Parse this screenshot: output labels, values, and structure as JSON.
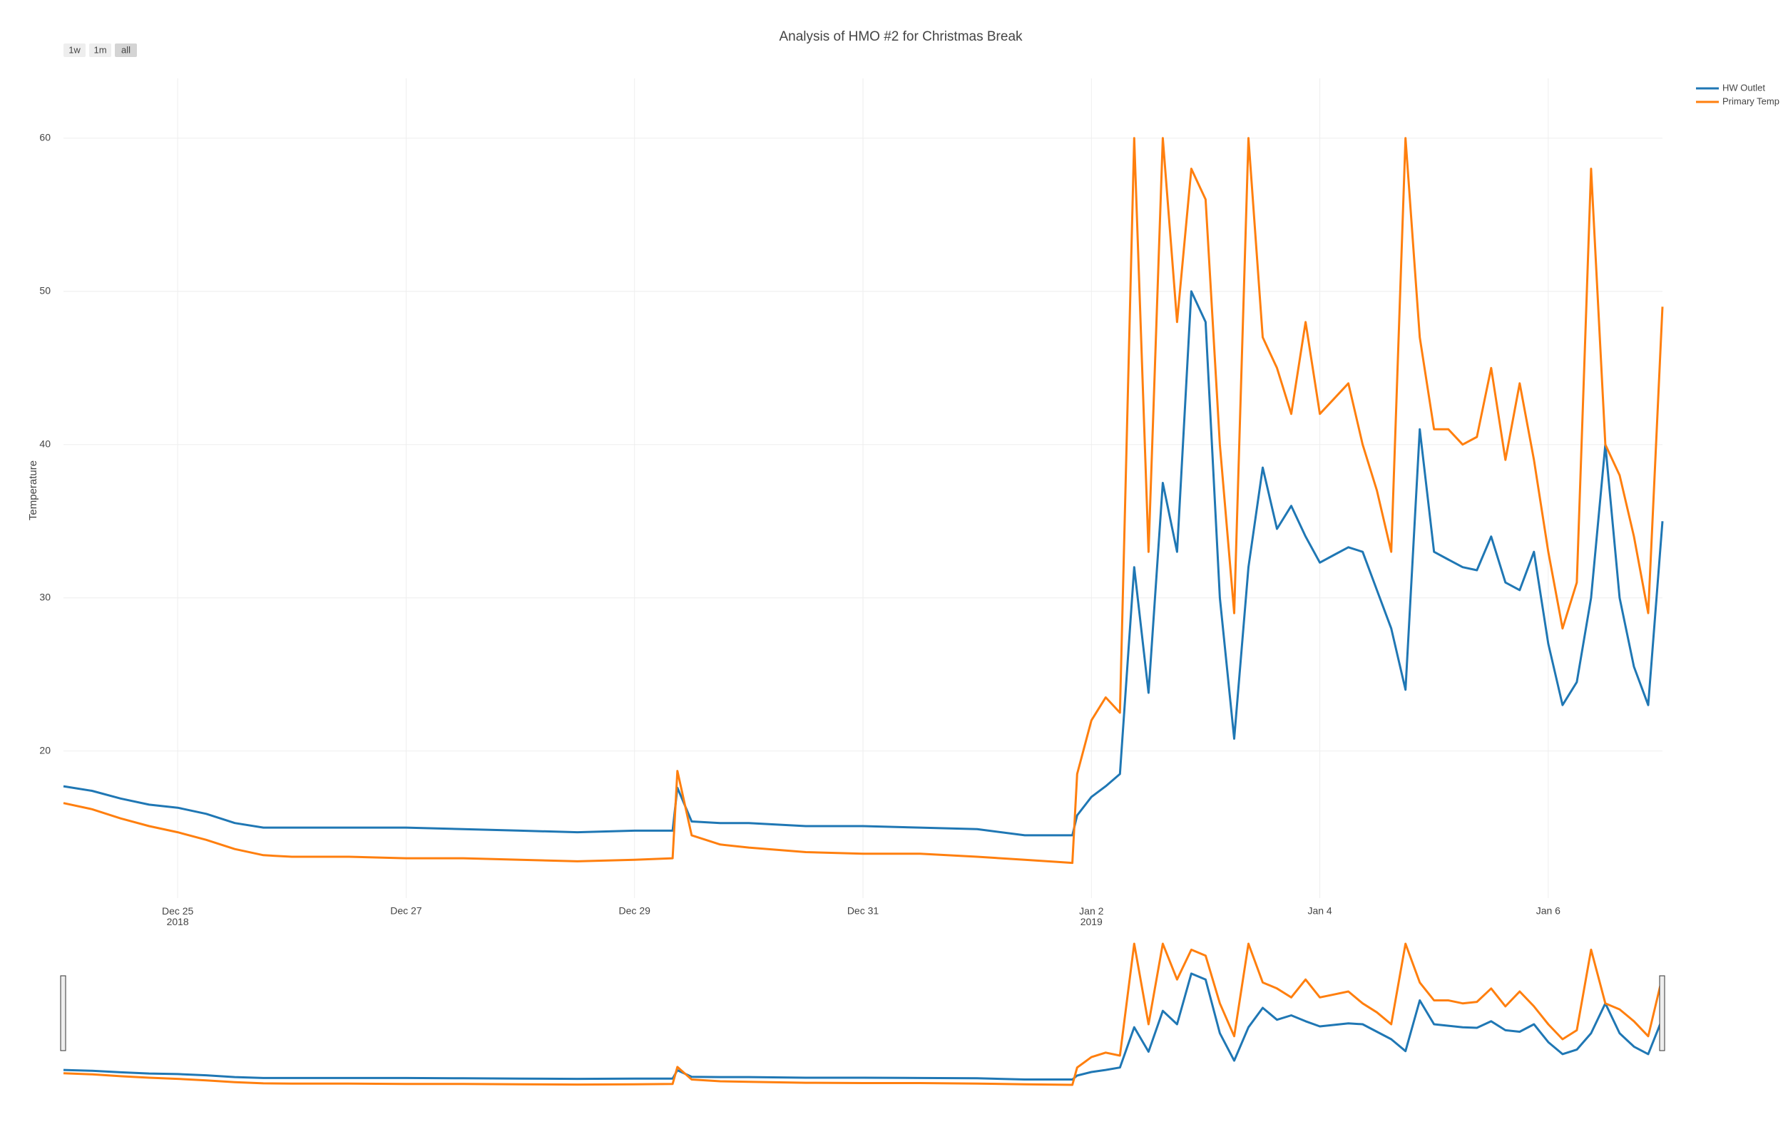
{
  "chart_data": {
    "type": "line",
    "title": "Analysis of HMO #2 for Christmas Break",
    "y_label": "Temperature",
    "range_buttons": [
      "1w",
      "1m",
      "all"
    ],
    "active_button": "all",
    "x": [
      "2018-12-24T00:00",
      "2018-12-24T06:00",
      "2018-12-24T12:00",
      "2018-12-24T18:00",
      "2018-12-25T00:00",
      "2018-12-25T06:00",
      "2018-12-25T12:00",
      "2018-12-25T18:00",
      "2018-12-26T00:00",
      "2018-12-26T12:00",
      "2018-12-27T00:00",
      "2018-12-27T12:00",
      "2018-12-28T00:00",
      "2018-12-28T12:00",
      "2018-12-29T00:00",
      "2018-12-29T08:00",
      "2018-12-29T09:00",
      "2018-12-29T12:00",
      "2018-12-29T18:00",
      "2018-12-30T00:00",
      "2018-12-30T12:00",
      "2018-12-31T00:00",
      "2018-12-31T12:00",
      "2019-01-01T00:00",
      "2019-01-01T10:00",
      "2019-01-01T20:00",
      "2019-01-01T21:00",
      "2019-01-02T00:00",
      "2019-01-02T03:00",
      "2019-01-02T06:00",
      "2019-01-02T09:00",
      "2019-01-02T12:00",
      "2019-01-02T15:00",
      "2019-01-02T18:00",
      "2019-01-02T21:00",
      "2019-01-03T00:00",
      "2019-01-03T03:00",
      "2019-01-03T06:00",
      "2019-01-03T09:00",
      "2019-01-03T12:00",
      "2019-01-03T15:00",
      "2019-01-03T18:00",
      "2019-01-03T21:00",
      "2019-01-04T00:00",
      "2019-01-04T03:00",
      "2019-01-04T06:00",
      "2019-01-04T09:00",
      "2019-01-04T12:00",
      "2019-01-04T15:00",
      "2019-01-04T18:00",
      "2019-01-04T21:00",
      "2019-01-05T00:00",
      "2019-01-05T03:00",
      "2019-01-05T06:00",
      "2019-01-05T09:00",
      "2019-01-05T12:00",
      "2019-01-05T15:00",
      "2019-01-05T18:00",
      "2019-01-05T21:00",
      "2019-01-06T00:00",
      "2019-01-06T03:00",
      "2019-01-06T06:00",
      "2019-01-06T09:00",
      "2019-01-06T12:00",
      "2019-01-06T15:00",
      "2019-01-06T18:00",
      "2019-01-06T21:00",
      "2019-01-07T00:00"
    ],
    "series": [
      {
        "name": "HW Outlet",
        "color": "#1f77b4",
        "values": [
          17.7,
          17.4,
          16.9,
          16.5,
          16.3,
          15.9,
          15.3,
          15.0,
          15.0,
          15.0,
          15.0,
          14.9,
          14.8,
          14.7,
          14.8,
          14.8,
          17.6,
          15.4,
          15.3,
          15.3,
          15.1,
          15.1,
          15.0,
          14.9,
          14.5,
          14.5,
          15.8,
          17,
          17.7,
          18.5,
          32,
          23.8,
          37.5,
          33,
          50,
          48,
          30,
          20.8,
          32,
          38.5,
          34.5,
          36,
          34,
          32.3,
          32.8,
          33.3,
          33,
          30.5,
          28,
          24,
          41,
          33,
          32.5,
          32,
          31.8,
          34,
          31,
          30.5,
          33,
          27,
          23,
          24.5,
          30,
          40,
          30,
          25.5,
          23,
          35
        ]
      },
      {
        "name": "Primary Temp",
        "color": "#ff7f0e",
        "values": [
          16.6,
          16.2,
          15.6,
          15.1,
          14.7,
          14.2,
          13.6,
          13.2,
          13.1,
          13.1,
          13.0,
          13.0,
          12.9,
          12.8,
          12.9,
          13.0,
          18.7,
          14.5,
          13.9,
          13.7,
          13.4,
          13.3,
          13.3,
          13.1,
          12.9,
          12.7,
          18.5,
          22,
          23.5,
          22.5,
          60,
          33,
          60,
          48,
          58,
          56,
          40,
          29,
          60,
          47,
          45,
          42,
          48,
          42,
          43,
          44,
          40,
          37,
          33,
          60,
          47,
          41,
          41,
          40,
          40.5,
          45,
          39,
          44,
          39,
          33,
          28,
          31,
          58,
          40,
          38,
          34,
          29,
          49
        ]
      }
    ],
    "xlim": [
      "2018-12-24T00:00",
      "2019-01-07T00:00"
    ],
    "xticks": [
      {
        "value": "2018-12-25T00:00",
        "label": "Dec 25\n2018"
      },
      {
        "value": "2018-12-27T00:00",
        "label": "Dec 27"
      },
      {
        "value": "2018-12-29T00:00",
        "label": "Dec 29"
      },
      {
        "value": "2018-12-31T00:00",
        "label": "Dec 31"
      },
      {
        "value": "2019-01-02T00:00",
        "label": "Jan 2\n2019"
      },
      {
        "value": "2019-01-04T00:00",
        "label": "Jan 4"
      },
      {
        "value": "2019-01-06T00:00",
        "label": "Jan 6"
      }
    ],
    "ylim": [
      10.4,
      63.9
    ],
    "yticks": [
      20,
      30,
      40,
      50,
      60
    ],
    "grid": true,
    "legend": "top-right",
    "range_slider": true
  }
}
